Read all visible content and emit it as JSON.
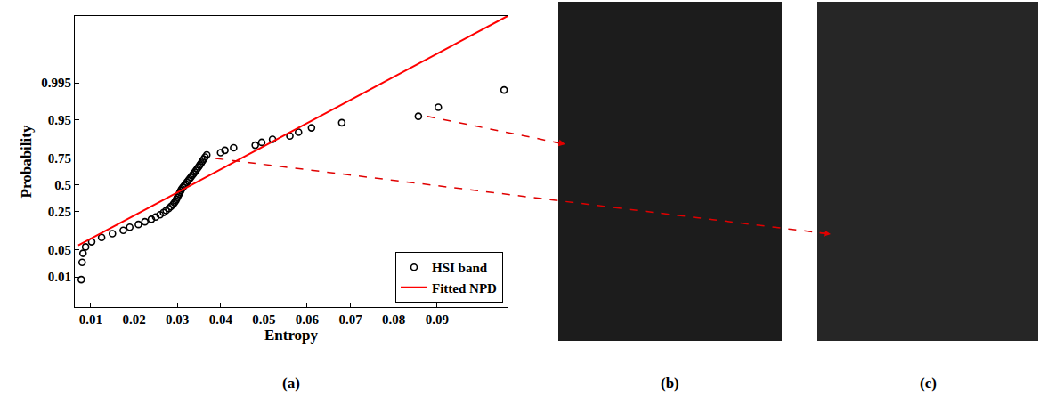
{
  "chart_data": {
    "type": "probability",
    "panel_label": "(a)",
    "x_label": "Entropy",
    "y_label": "Probability",
    "xlim": [
      0.0063,
      0.1063
    ],
    "xticks": [
      0.01,
      0.02,
      0.03,
      0.04,
      0.05,
      0.06,
      0.07,
      0.08,
      0.09
    ],
    "ylim": [
      0.001,
      0.99999
    ],
    "yticks": [
      0.01,
      0.05,
      0.25,
      0.5,
      0.75,
      0.95,
      0.995
    ],
    "grid": false,
    "legend": "lower right",
    "series": [
      {
        "name": "HSI band",
        "type": "scatter",
        "marker": "open_circle",
        "color": "#000000",
        "x": [
          0.0078,
          0.008,
          0.0082,
          0.0088,
          0.0102,
          0.0125,
          0.015,
          0.0175,
          0.019,
          0.021,
          0.0225,
          0.024,
          0.025,
          0.026,
          0.0268,
          0.0274,
          0.028,
          0.0285,
          0.029,
          0.0293,
          0.0296,
          0.0298,
          0.03,
          0.0302,
          0.0304,
          0.0306,
          0.0308,
          0.031,
          0.0313,
          0.0316,
          0.0319,
          0.0322,
          0.0325,
          0.0328,
          0.0331,
          0.0334,
          0.0337,
          0.034,
          0.0343,
          0.0346,
          0.0349,
          0.0352,
          0.0355,
          0.0358,
          0.0361,
          0.0364,
          0.0368,
          0.04,
          0.041,
          0.043,
          0.048,
          0.0495,
          0.052,
          0.056,
          0.058,
          0.061,
          0.068,
          0.0857,
          0.0903,
          0.1055
        ],
        "values": [
          0.0083,
          0.025,
          0.0417,
          0.0583,
          0.075,
          0.0917,
          0.1083,
          0.125,
          0.1417,
          0.1583,
          0.175,
          0.1917,
          0.2083,
          0.225,
          0.2417,
          0.2583,
          0.275,
          0.2917,
          0.3083,
          0.325,
          0.3417,
          0.3583,
          0.375,
          0.3917,
          0.4083,
          0.425,
          0.4417,
          0.4583,
          0.475,
          0.4917,
          0.5083,
          0.525,
          0.5417,
          0.5583,
          0.575,
          0.5917,
          0.6083,
          0.625,
          0.6417,
          0.6583,
          0.675,
          0.6917,
          0.7083,
          0.725,
          0.7417,
          0.7583,
          0.775,
          0.7917,
          0.8083,
          0.825,
          0.8417,
          0.8583,
          0.875,
          0.8917,
          0.9083,
          0.925,
          0.9417,
          0.9583,
          0.975,
          0.9917
        ]
      },
      {
        "name": "Fitted NPD",
        "type": "line",
        "line_style": "solid",
        "color": "#ff0000",
        "x": [
          0.0071,
          0.1063
        ],
        "values": [
          0.063,
          0.99999
        ]
      }
    ]
  },
  "images": [
    {
      "label": "(b)"
    },
    {
      "label": "(c)"
    }
  ]
}
